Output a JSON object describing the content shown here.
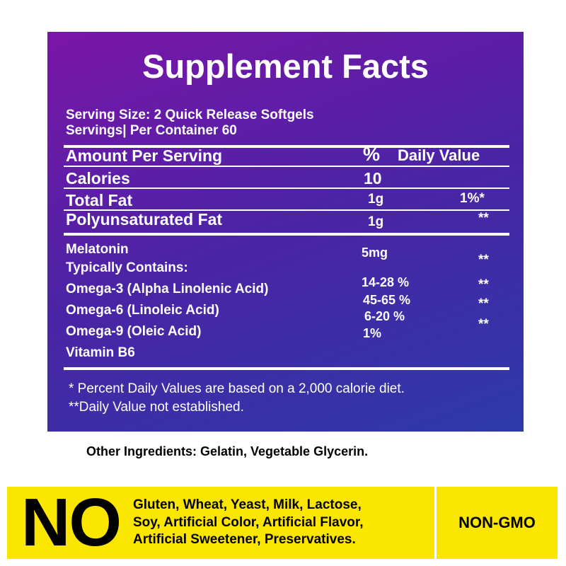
{
  "header": {
    "title": "Supplement Facts"
  },
  "serving": {
    "size": "Serving Size: 2 Quick Release Softgels",
    "servings": "Servings| Per Container 60"
  },
  "table": {
    "header": {
      "label": "Amount Per Serving",
      "percent": "%",
      "daily_value": "Daily Value"
    },
    "rows": [
      {
        "name": "Calories",
        "amount": "10"
      },
      {
        "name": "Total Fat",
        "amount": "1g",
        "daily_value": "1%*"
      },
      {
        "name": "Polyunsaturated Fat",
        "amount": "1g",
        "daily_value": "**"
      }
    ]
  },
  "ingredients": {
    "names": [
      "Melatonin",
      "Typically Contains:",
      "Omega-3 (Alpha Linolenic Acid)",
      "Omega-6 (Linoleic Acid)",
      "Omega-9 (Oleic Acid)",
      "Vitamin B6"
    ],
    "amounts": [
      "5mg",
      "14-28 %",
      "45-65 %",
      "6-20 %",
      "1%"
    ],
    "daily_values": [
      "**",
      "**",
      "**",
      "**"
    ]
  },
  "footnotes": [
    "* Percent Daily Values are based on a 2,000 calorie diet.",
    "**Daily Value not established."
  ],
  "other_ingredients": "Other Ingredients: Gelatin, Vegetable Glycerin.",
  "banner": {
    "no": "NO",
    "allergens": [
      "Gluten, Wheat, Yeast, Milk, Lactose,",
      "Soy, Artificial Color, Artificial Flavor,",
      "Artificial Sweetener, Preservatives."
    ],
    "badge": "NON-GMO"
  }
}
